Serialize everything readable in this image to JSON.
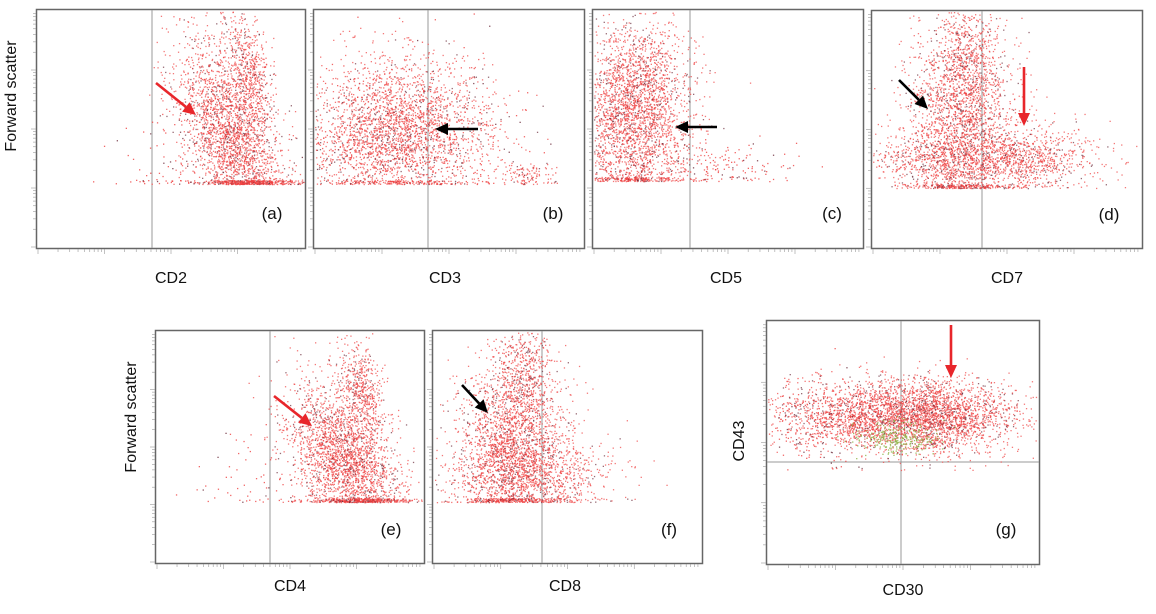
{
  "figure": {
    "y_label_top": "Forward scatter",
    "y_label_bottom": "Forward scatter",
    "y_label_g": "CD43"
  },
  "colors": {
    "dots": "#ef4040",
    "dots_dark": "#6b2b3a",
    "dots_green": "#8fb44a",
    "arrow_red": "#e8262b",
    "arrow_black": "#000000"
  },
  "chart_data": [
    {
      "type": "scatter",
      "panel_label": "(a)",
      "xlabel": "CD2",
      "ylabel": "Forward scatter",
      "clusters": [
        {
          "x": [
            0.53,
            0.78
          ],
          "y": [
            0.25,
            0.85
          ],
          "shape": "tilted-up",
          "density": "high"
        }
      ],
      "arrows": [
        {
          "color": "red",
          "direction": "down-right"
        }
      ]
    },
    {
      "type": "scatter",
      "panel_label": "(b)",
      "xlabel": "CD3",
      "ylabel": "",
      "clusters": [
        {
          "x": [
            0.05,
            0.5
          ],
          "y": [
            0.25,
            0.85
          ],
          "shape": "broad",
          "density": "high"
        },
        {
          "x": [
            0.7,
            0.85
          ],
          "y": [
            0.25,
            0.35
          ],
          "shape": "small",
          "density": "low"
        }
      ],
      "arrows": [
        {
          "color": "black",
          "direction": "left"
        }
      ]
    },
    {
      "type": "scatter",
      "panel_label": "(c)",
      "xlabel": "CD5",
      "ylabel": "",
      "clusters": [
        {
          "x": [
            0.02,
            0.35
          ],
          "y": [
            0.3,
            0.95
          ],
          "shape": "broad",
          "density": "high"
        }
      ],
      "arrows": [
        {
          "color": "black",
          "direction": "left"
        }
      ]
    },
    {
      "type": "scatter",
      "panel_label": "(d)",
      "xlabel": "CD7",
      "ylabel": "",
      "clusters": [
        {
          "x": [
            0.1,
            0.55
          ],
          "y": [
            0.25,
            0.95
          ],
          "shape": "broad",
          "density": "high"
        },
        {
          "x": [
            0.4,
            0.78
          ],
          "y": [
            0.25,
            0.45
          ],
          "shape": "elongated",
          "density": "medium"
        }
      ],
      "arrows": [
        {
          "color": "black",
          "direction": "down-right"
        },
        {
          "color": "red",
          "direction": "down"
        }
      ]
    },
    {
      "type": "scatter",
      "panel_label": "(e)",
      "xlabel": "CD4",
      "ylabel": "Forward scatter",
      "clusters": [
        {
          "x": [
            0.5,
            0.85
          ],
          "y": [
            0.2,
            0.85
          ],
          "shape": "tilted-up",
          "density": "high"
        }
      ],
      "arrows": [
        {
          "color": "red",
          "direction": "down-right"
        }
      ]
    },
    {
      "type": "scatter",
      "panel_label": "(f)",
      "xlabel": "CD8",
      "ylabel": "",
      "clusters": [
        {
          "x": [
            0.1,
            0.6
          ],
          "y": [
            0.2,
            0.95
          ],
          "shape": "broad",
          "density": "high"
        }
      ],
      "arrows": [
        {
          "color": "black",
          "direction": "down-right"
        }
      ]
    },
    {
      "type": "scatter",
      "panel_label": "(g)",
      "xlabel": "CD30",
      "ylabel": "CD43",
      "clusters": [
        {
          "x": [
            0.05,
            0.75
          ],
          "y": [
            0.45,
            0.75
          ],
          "shape": "elongated",
          "density": "high"
        }
      ],
      "arrows": [
        {
          "color": "red",
          "direction": "down"
        }
      ]
    }
  ]
}
